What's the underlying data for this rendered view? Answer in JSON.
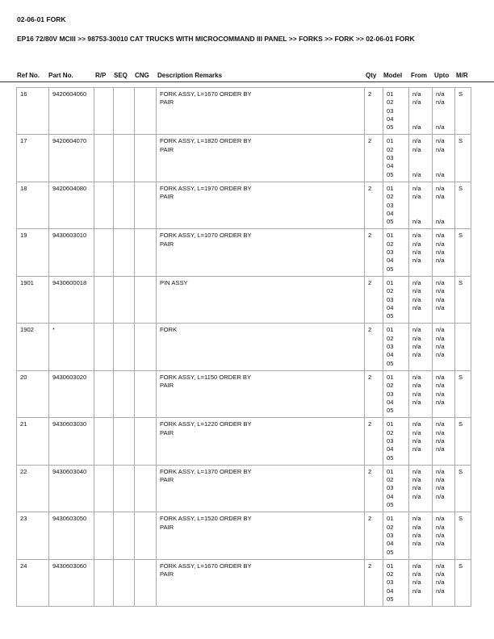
{
  "title": "02-06-01 FORK",
  "breadcrumb": "EP16 72/80V MCIII >> 98753-30010 CAT TRUCKS WITH MICROCOMMAND III PANEL >> FORKS >> FORK >> 02-06-01 FORK",
  "columns": [
    "Ref No.",
    "Part No.",
    "R/P",
    "SEQ",
    "CNG",
    "Description Remarks",
    "Qty",
    "Model",
    "From",
    "Upto",
    "M/R"
  ],
  "rows": [
    {
      "ref": "16",
      "part": "9420604060",
      "desc": [
        "FORK ASSY, L=1670 ORDER BY",
        "PAIR"
      ],
      "qty": "2",
      "models": [
        "01",
        "02",
        "03",
        "04",
        "05"
      ],
      "from": [
        "n/a",
        "n/a",
        "",
        "",
        "n/a"
      ],
      "upto": [
        "n/a",
        "n/a",
        "",
        "",
        "n/a"
      ],
      "mr": "S"
    },
    {
      "ref": "17",
      "part": "9420604070",
      "desc": [
        "FORK ASSY, L=1820 ORDER BY",
        "PAIR"
      ],
      "qty": "2",
      "models": [
        "01",
        "02",
        "03",
        "04",
        "05"
      ],
      "from": [
        "n/a",
        "n/a",
        "",
        "",
        "n/a"
      ],
      "upto": [
        "n/a",
        "n/a",
        "",
        "",
        "n/a"
      ],
      "mr": "S"
    },
    {
      "ref": "18",
      "part": "9420604080",
      "desc": [
        "FORK ASSY, L=1970 ORDER BY",
        "PAIR"
      ],
      "qty": "2",
      "models": [
        "01",
        "02",
        "03",
        "04",
        "05"
      ],
      "from": [
        "n/a",
        "n/a",
        "",
        "",
        "n/a"
      ],
      "upto": [
        "n/a",
        "n/a",
        "",
        "",
        "n/a"
      ],
      "mr": "S"
    },
    {
      "ref": "19",
      "part": "9430603010",
      "desc": [
        "FORK ASSY, L=1070 ORDER BY",
        "PAIR"
      ],
      "qty": "2",
      "models": [
        "01",
        "02",
        "03",
        "04",
        "05"
      ],
      "from": [
        "n/a",
        "n/a",
        "n/a",
        "n/a",
        ""
      ],
      "upto": [
        "n/a",
        "n/a",
        "n/a",
        "n/a",
        ""
      ],
      "mr": "S"
    },
    {
      "ref": "1901",
      "part": "9430600018",
      "desc": [
        "PIN ASSY"
      ],
      "qty": "2",
      "models": [
        "01",
        "02",
        "03",
        "04",
        "05"
      ],
      "from": [
        "n/a",
        "n/a",
        "n/a",
        "n/a",
        ""
      ],
      "upto": [
        "n/a",
        "n/a",
        "n/a",
        "n/a",
        ""
      ],
      "mr": "S"
    },
    {
      "ref": "1902",
      "part": "*",
      "desc": [
        "FORK"
      ],
      "qty": "2",
      "models": [
        "01",
        "02",
        "03",
        "04",
        "05"
      ],
      "from": [
        "n/a",
        "n/a",
        "n/a",
        "n/a",
        ""
      ],
      "upto": [
        "n/a",
        "n/a",
        "n/a",
        "n/a",
        ""
      ],
      "mr": ""
    },
    {
      "ref": "20",
      "part": "9430603020",
      "desc": [
        "FORK ASSY, L=1150 ORDER BY",
        "PAIR"
      ],
      "qty": "2",
      "models": [
        "01",
        "02",
        "03",
        "04",
        "05"
      ],
      "from": [
        "n/a",
        "n/a",
        "n/a",
        "n/a",
        ""
      ],
      "upto": [
        "n/a",
        "n/a",
        "n/a",
        "n/a",
        ""
      ],
      "mr": "S"
    },
    {
      "ref": "21",
      "part": "9430603030",
      "desc": [
        "FORK ASSY, L=1220 ORDER BY",
        "PAIR"
      ],
      "qty": "2",
      "models": [
        "01",
        "02",
        "03",
        "04",
        "05"
      ],
      "from": [
        "n/a",
        "n/a",
        "n/a",
        "n/a",
        ""
      ],
      "upto": [
        "n/a",
        "n/a",
        "n/a",
        "n/a",
        ""
      ],
      "mr": "S"
    },
    {
      "ref": "22",
      "part": "9430603040",
      "desc": [
        "FORK ASSY, L=1370 ORDER BY",
        "PAIR"
      ],
      "qty": "2",
      "models": [
        "01",
        "02",
        "03",
        "04",
        "05"
      ],
      "from": [
        "n/a",
        "n/a",
        "n/a",
        "n/a",
        ""
      ],
      "upto": [
        "n/a",
        "n/a",
        "n/a",
        "n/a",
        ""
      ],
      "mr": "S"
    },
    {
      "ref": "23",
      "part": "9430603050",
      "desc": [
        "FORK ASSY, L=1520 ORDER BY",
        "PAIR"
      ],
      "qty": "2",
      "models": [
        "01",
        "02",
        "03",
        "04",
        "05"
      ],
      "from": [
        "n/a",
        "n/a",
        "n/a",
        "n/a",
        ""
      ],
      "upto": [
        "n/a",
        "n/a",
        "n/a",
        "n/a",
        ""
      ],
      "mr": "S"
    },
    {
      "ref": "24",
      "part": "9430603060",
      "desc": [
        "FORK ASSY, L=1670 ORDER BY",
        "PAIR"
      ],
      "qty": "2",
      "models": [
        "01",
        "02",
        "03",
        "04",
        "05"
      ],
      "from": [
        "n/a",
        "n/a",
        "n/a",
        "n/a",
        ""
      ],
      "upto": [
        "n/a",
        "n/a",
        "n/a",
        "n/a",
        ""
      ],
      "mr": "S"
    }
  ]
}
